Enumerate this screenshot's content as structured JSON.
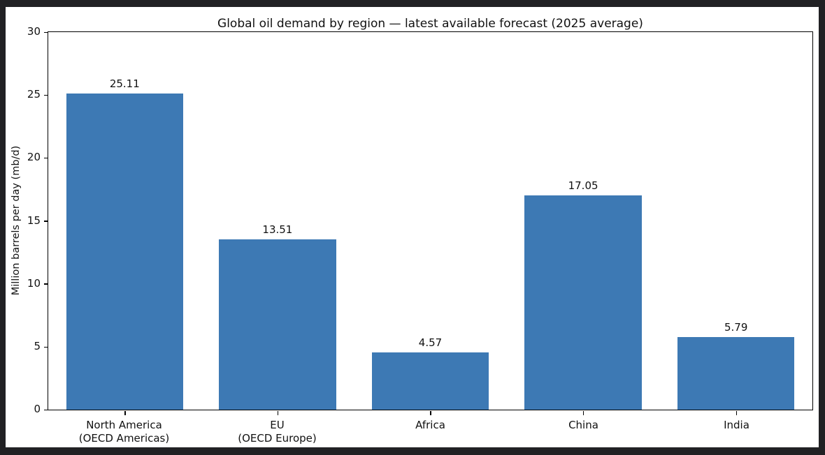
{
  "app": {
    "outer_background": "#212124",
    "figure_background": "#ffffff",
    "axes_color": "#000000",
    "text_color": "#111111"
  },
  "chart_data": {
    "type": "bar",
    "title": "Global oil demand by region — latest available forecast (2025 average)",
    "xlabel": "",
    "ylabel": "Million barrels per day (mb/d)",
    "categories": [
      "North America\n(OECD Americas)",
      "EU\n(OECD Europe)",
      "Africa",
      "China",
      "India"
    ],
    "values": [
      25.11,
      13.51,
      4.57,
      17.05,
      5.79
    ],
    "value_labels": [
      "25.11",
      "13.51",
      "4.57",
      "17.05",
      "5.79"
    ],
    "ylim": [
      0,
      30
    ],
    "yticks": [
      0,
      5,
      10,
      15,
      20,
      25,
      30
    ],
    "bar_color": "#3d79b4",
    "grid": false,
    "legend": "none"
  }
}
